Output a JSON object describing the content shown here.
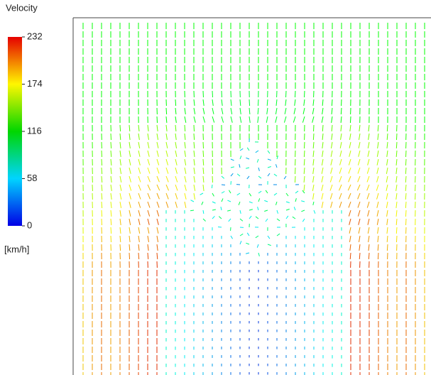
{
  "chart_data": {
    "type": "vector-field",
    "colorbar": {
      "title": "Velocity",
      "unit": "[km/h]",
      "lim": [
        0,
        232
      ],
      "ticks": [
        0,
        58,
        116,
        174,
        232
      ]
    }
  }
}
